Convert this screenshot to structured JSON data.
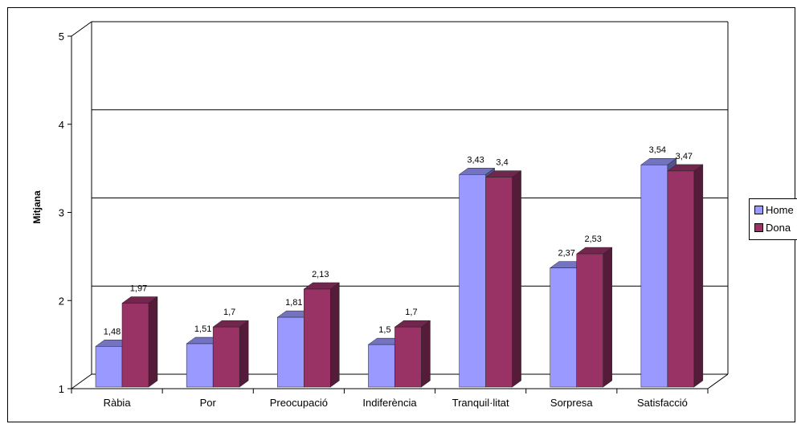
{
  "chart_data": {
    "type": "bar",
    "ylabel": "Mitjana",
    "xlabel": "",
    "ylim": [
      1,
      5
    ],
    "yticks": [
      "1",
      "2",
      "3",
      "4",
      "5"
    ],
    "grid": true,
    "legend_position": "right",
    "categories": [
      "Ràbia",
      "Por",
      "Preocupació",
      "Indiferència",
      "Tranquil·litat",
      "Sorpresa",
      "Satisfacció"
    ],
    "series": [
      {
        "name": "Home",
        "color": "#9999ff",
        "values": [
          1.48,
          1.51,
          1.81,
          1.5,
          3.43,
          2.37,
          3.54
        ],
        "labels": [
          "1,48",
          "1,51",
          "1,81",
          "1,5",
          "3,43",
          "2,37",
          "3,54"
        ]
      },
      {
        "name": "Dona",
        "color": "#993366",
        "values": [
          1.97,
          1.7,
          2.13,
          1.7,
          3.4,
          2.53,
          3.47
        ],
        "labels": [
          "1,97",
          "1,7",
          "2,13",
          "1,7",
          "3,4",
          "2,53",
          "3,47"
        ]
      }
    ]
  },
  "legend": {
    "items": [
      {
        "label": "Home",
        "color": "#9999ff"
      },
      {
        "label": "Dona",
        "color": "#993366"
      }
    ]
  }
}
